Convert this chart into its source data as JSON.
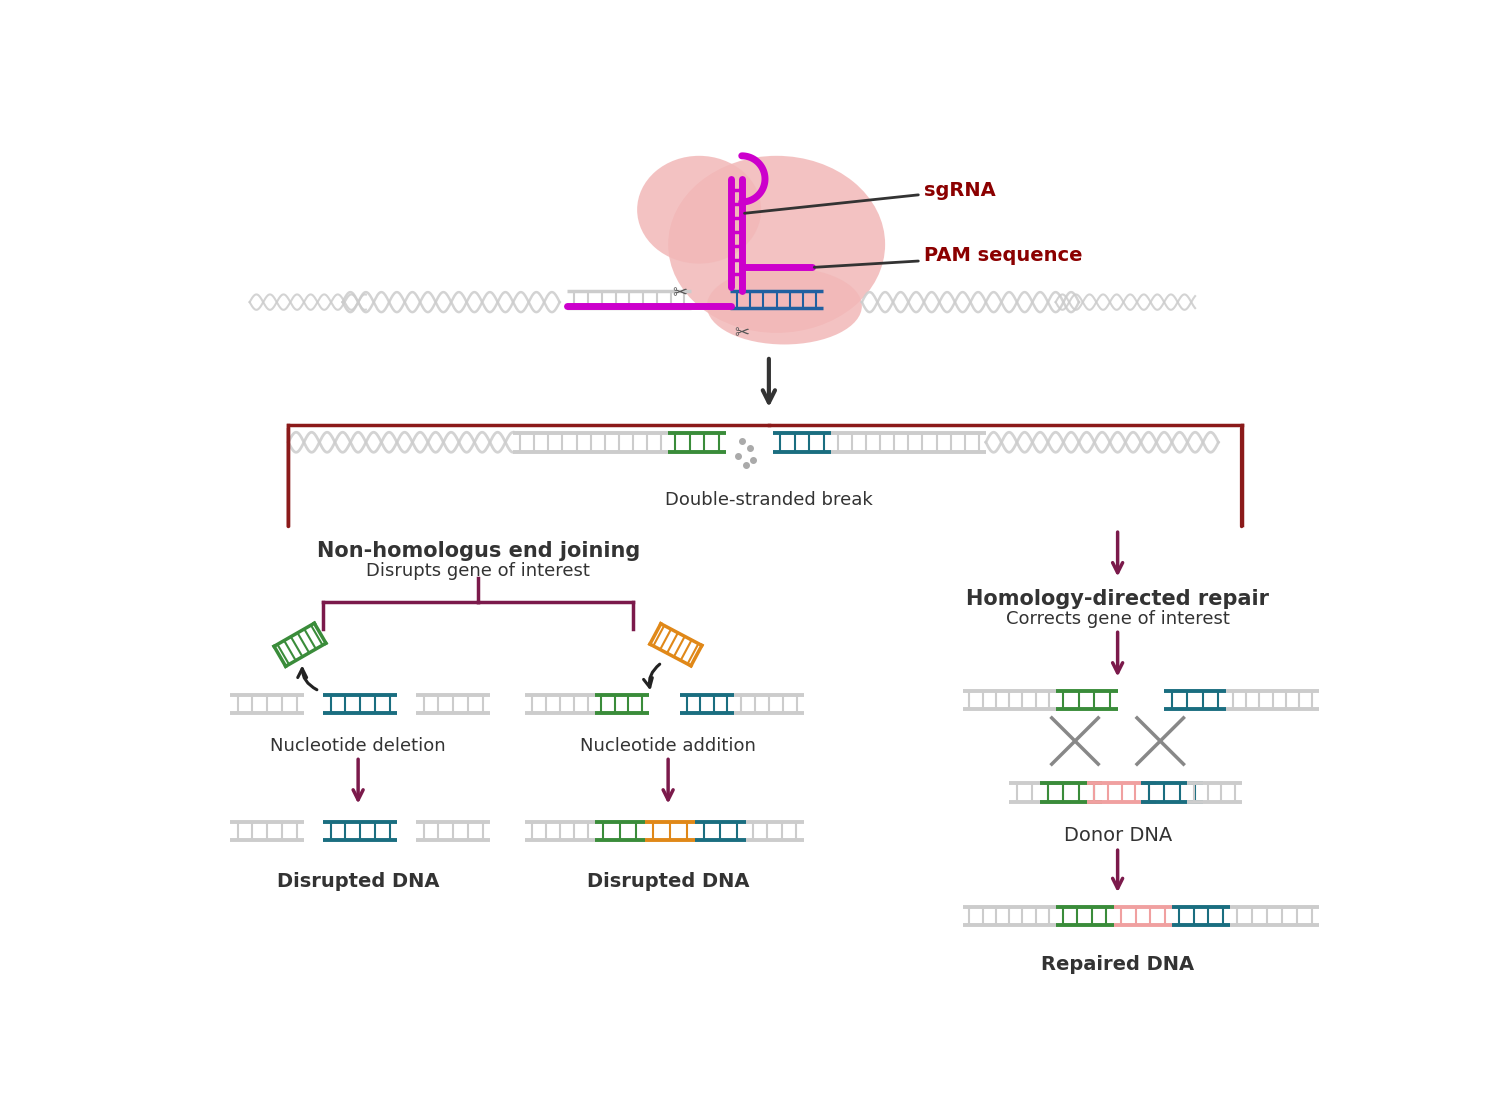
{
  "background_color": "#ffffff",
  "cas9_blob_color": "#f2b8b8",
  "sgrna_color": "#cc00cc",
  "dna_color": "#cccccc",
  "dna_highlight_green": "#3a8c3a",
  "dna_highlight_teal": "#1a6e80",
  "dna_highlight_orange": "#e08818",
  "dna_highlight_pink": "#f0a0a0",
  "arrow_dark": "#333333",
  "arrow_purple": "#7b1a4b",
  "line_darkred": "#8b1a1a",
  "text_color": "#333333",
  "sgrna_label_color": "#8b0000",
  "pam_label_color": "#8b0000",
  "labels": {
    "sgrna": "sgRNA",
    "pam": "PAM sequence",
    "dsb": "Double-stranded break",
    "nhej_title": "Non-homologus end joining",
    "nhej_sub": "Disrupts gene of interest",
    "hdr_title": "Homology-directed repair",
    "hdr_sub": "Corrects gene of interest",
    "nuc_del": "Nucleotide deletion",
    "nuc_add": "Nucleotide addition",
    "disrupted1": "Disrupted DNA",
    "disrupted2": "Disrupted DNA",
    "donor": "Donor DNA",
    "repaired": "Repaired DNA"
  }
}
